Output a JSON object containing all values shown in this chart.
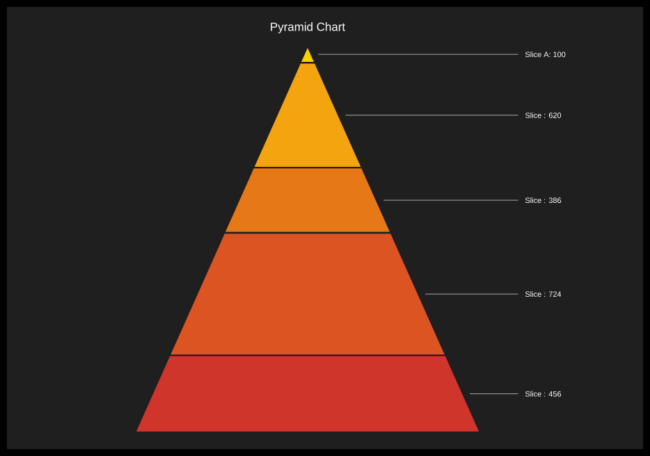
{
  "chart_data": {
    "type": "other",
    "title": "Pyramid Chart",
    "values": [
      100,
      620,
      386,
      724,
      456
    ],
    "value_labels": [
      "Slice A: 100",
      "Slice : 620",
      "Slice : 386",
      "Slice : 724",
      "Slice : 456"
    ],
    "colors": [
      "#f7d000",
      "#f4a40e",
      "#e67818",
      "#dc5422",
      "#d0352c"
    ]
  }
}
